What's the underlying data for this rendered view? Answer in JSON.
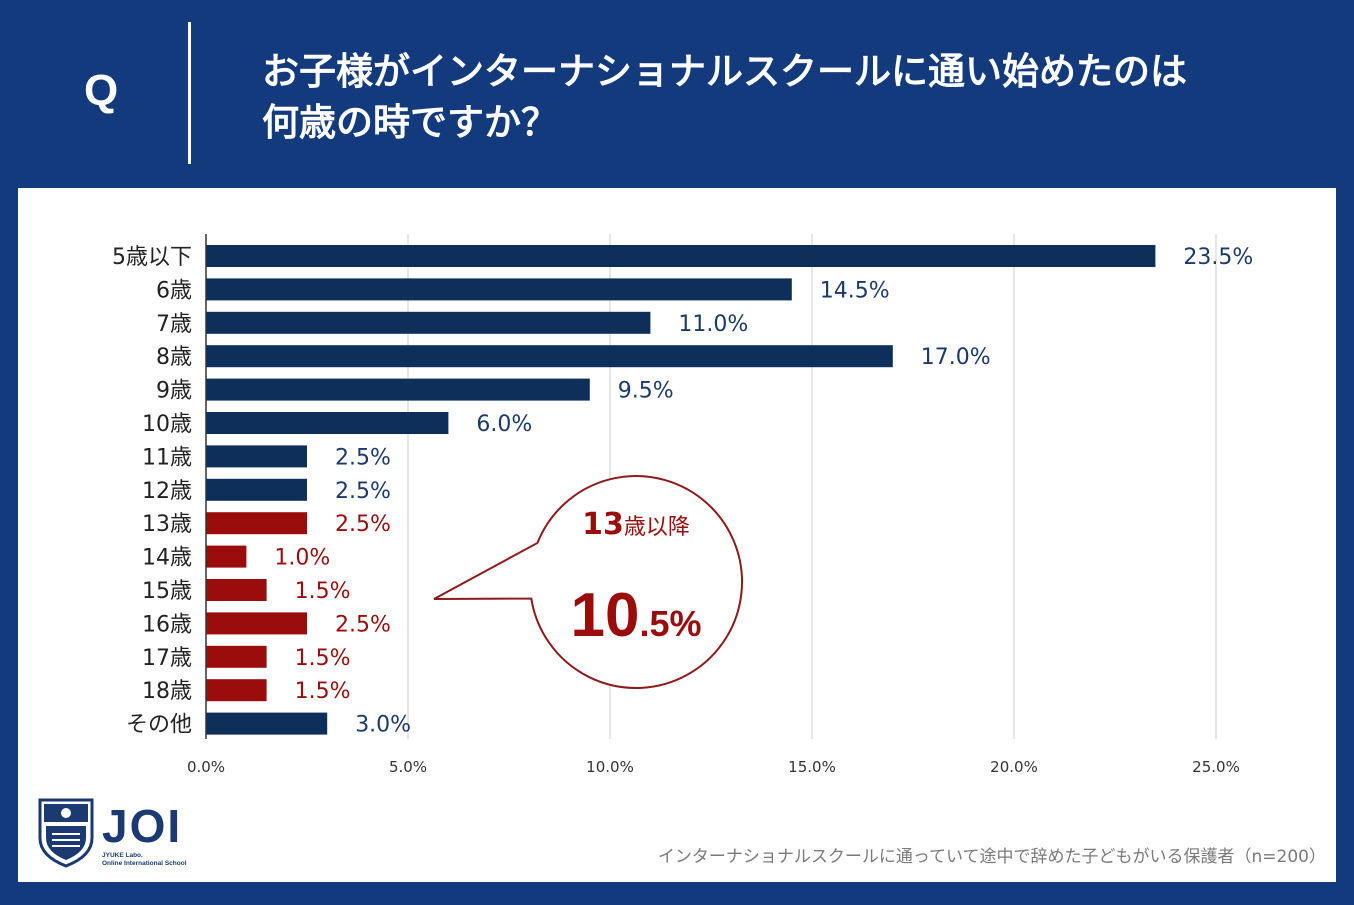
{
  "header": {
    "q_label": "Q",
    "question_line1": "お子様がインターナショナルスクールに通い始めたのは",
    "question_line2": "何歳の時ですか？"
  },
  "chart_data": {
    "type": "bar",
    "orientation": "horizontal",
    "categories": [
      "5歳以下",
      "6歳",
      "7歳",
      "8歳",
      "9歳",
      "10歳",
      "11歳",
      "12歳",
      "13歳",
      "14歳",
      "15歳",
      "16歳",
      "17歳",
      "18歳",
      "その他"
    ],
    "values": [
      23.5,
      14.5,
      11.0,
      17.0,
      9.5,
      6.0,
      2.5,
      2.5,
      2.5,
      1.0,
      1.5,
      2.5,
      1.5,
      1.5,
      3.0
    ],
    "value_labels": [
      "23.5%",
      "14.5%",
      "11.0%",
      "17.0%",
      "9.5%",
      "6.0%",
      "2.5%",
      "2.5%",
      "2.5%",
      "1.0%",
      "1.5%",
      "2.5%",
      "1.5%",
      "1.5%",
      "3.0%"
    ],
    "highlight": [
      false,
      false,
      false,
      false,
      false,
      false,
      false,
      false,
      true,
      true,
      true,
      true,
      true,
      true,
      false
    ],
    "xlim": [
      0,
      25
    ],
    "xticks": [
      0,
      5,
      10,
      15,
      20,
      25
    ],
    "xtick_labels": [
      "0.0%",
      "5.0%",
      "10.0%",
      "15.0%",
      "20.0%",
      "25.0%"
    ],
    "grid": true,
    "colors": {
      "primary": "#0e2f5a",
      "highlight": "#9b0d0d",
      "grid": "#cccccc",
      "axis": "#333333"
    },
    "callout": {
      "title_number": "13",
      "title_suffix": "歳以降",
      "value_number": "10",
      "value_suffix": ".5%",
      "points_to": "13歳-18歳"
    }
  },
  "brand": {
    "name": "JOI",
    "sub_line1": "JYUKE Labo.",
    "sub_line2": "Online International School"
  },
  "footnote": "インターナショナルスクールに通っていて途中で辞めた子どもがいる保護者（n=200）",
  "colors": {
    "header_bg": "#133a7c",
    "panel_bg": "#ffffff",
    "brand": "#1b3a72"
  }
}
